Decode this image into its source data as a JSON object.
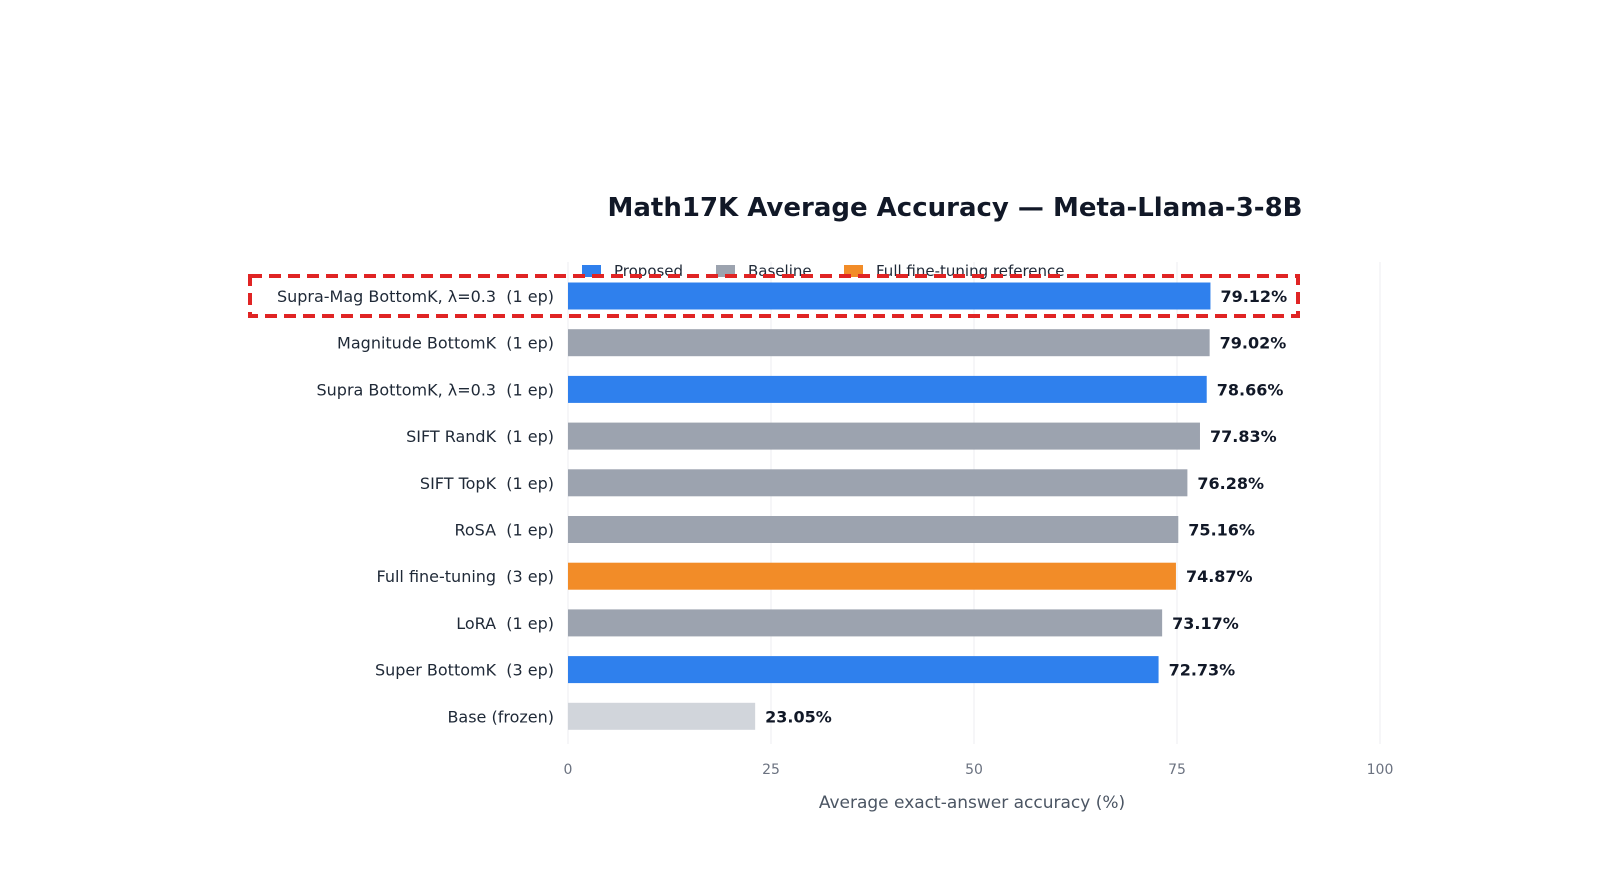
{
  "chart_data": {
    "type": "bar",
    "orientation": "horizontal",
    "title": "Math17K Average Accuracy — Meta-Llama-3-8B",
    "xlabel": "Average exact-answer accuracy (%)",
    "ylabel": "",
    "xlim": [
      0,
      100
    ],
    "xticks": [
      "0",
      "25",
      "50",
      "75",
      "100"
    ],
    "grid": "vertical",
    "legend_position": "top",
    "legend": [
      {
        "label": "Proposed",
        "color": "#2f80ed"
      },
      {
        "label": "Baseline",
        "color": "#9ca3af"
      },
      {
        "label": "Full fine-tuning reference",
        "color": "#f28c28"
      }
    ],
    "categories": [
      "Supra-Mag BottomK, λ=0.3  (1 ep)",
      "Magnitude BottomK  (1 ep)",
      "Supra BottomK, λ=0.3  (1 ep)",
      "SIFT RandK  (1 ep)",
      "SIFT TopK  (1 ep)",
      "RoSA  (1 ep)",
      "Full fine-tuning  (3 ep)",
      "LoRA  (1 ep)",
      "Super BottomK  (3 ep)",
      "Base (frozen)"
    ],
    "values": [
      79.12,
      79.02,
      78.66,
      77.83,
      76.28,
      75.16,
      74.87,
      73.17,
      72.73,
      23.05
    ],
    "value_labels": [
      "79.12%",
      "79.02%",
      "78.66%",
      "77.83%",
      "76.28%",
      "75.16%",
      "74.87%",
      "73.17%",
      "72.73%",
      "23.05%"
    ],
    "groups": [
      "Proposed",
      "Baseline",
      "Proposed",
      "Baseline",
      "Baseline",
      "Baseline",
      "Full fine-tuning reference",
      "Baseline",
      "Proposed",
      "Base"
    ],
    "colors": {
      "Proposed": "#2f80ed",
      "Baseline": "#9ca3af",
      "Full fine-tuning reference": "#f28c28",
      "Base": "#d1d5db"
    },
    "highlight": {
      "category_index": 0,
      "style": "red dashed box",
      "color": "#e02424"
    }
  }
}
